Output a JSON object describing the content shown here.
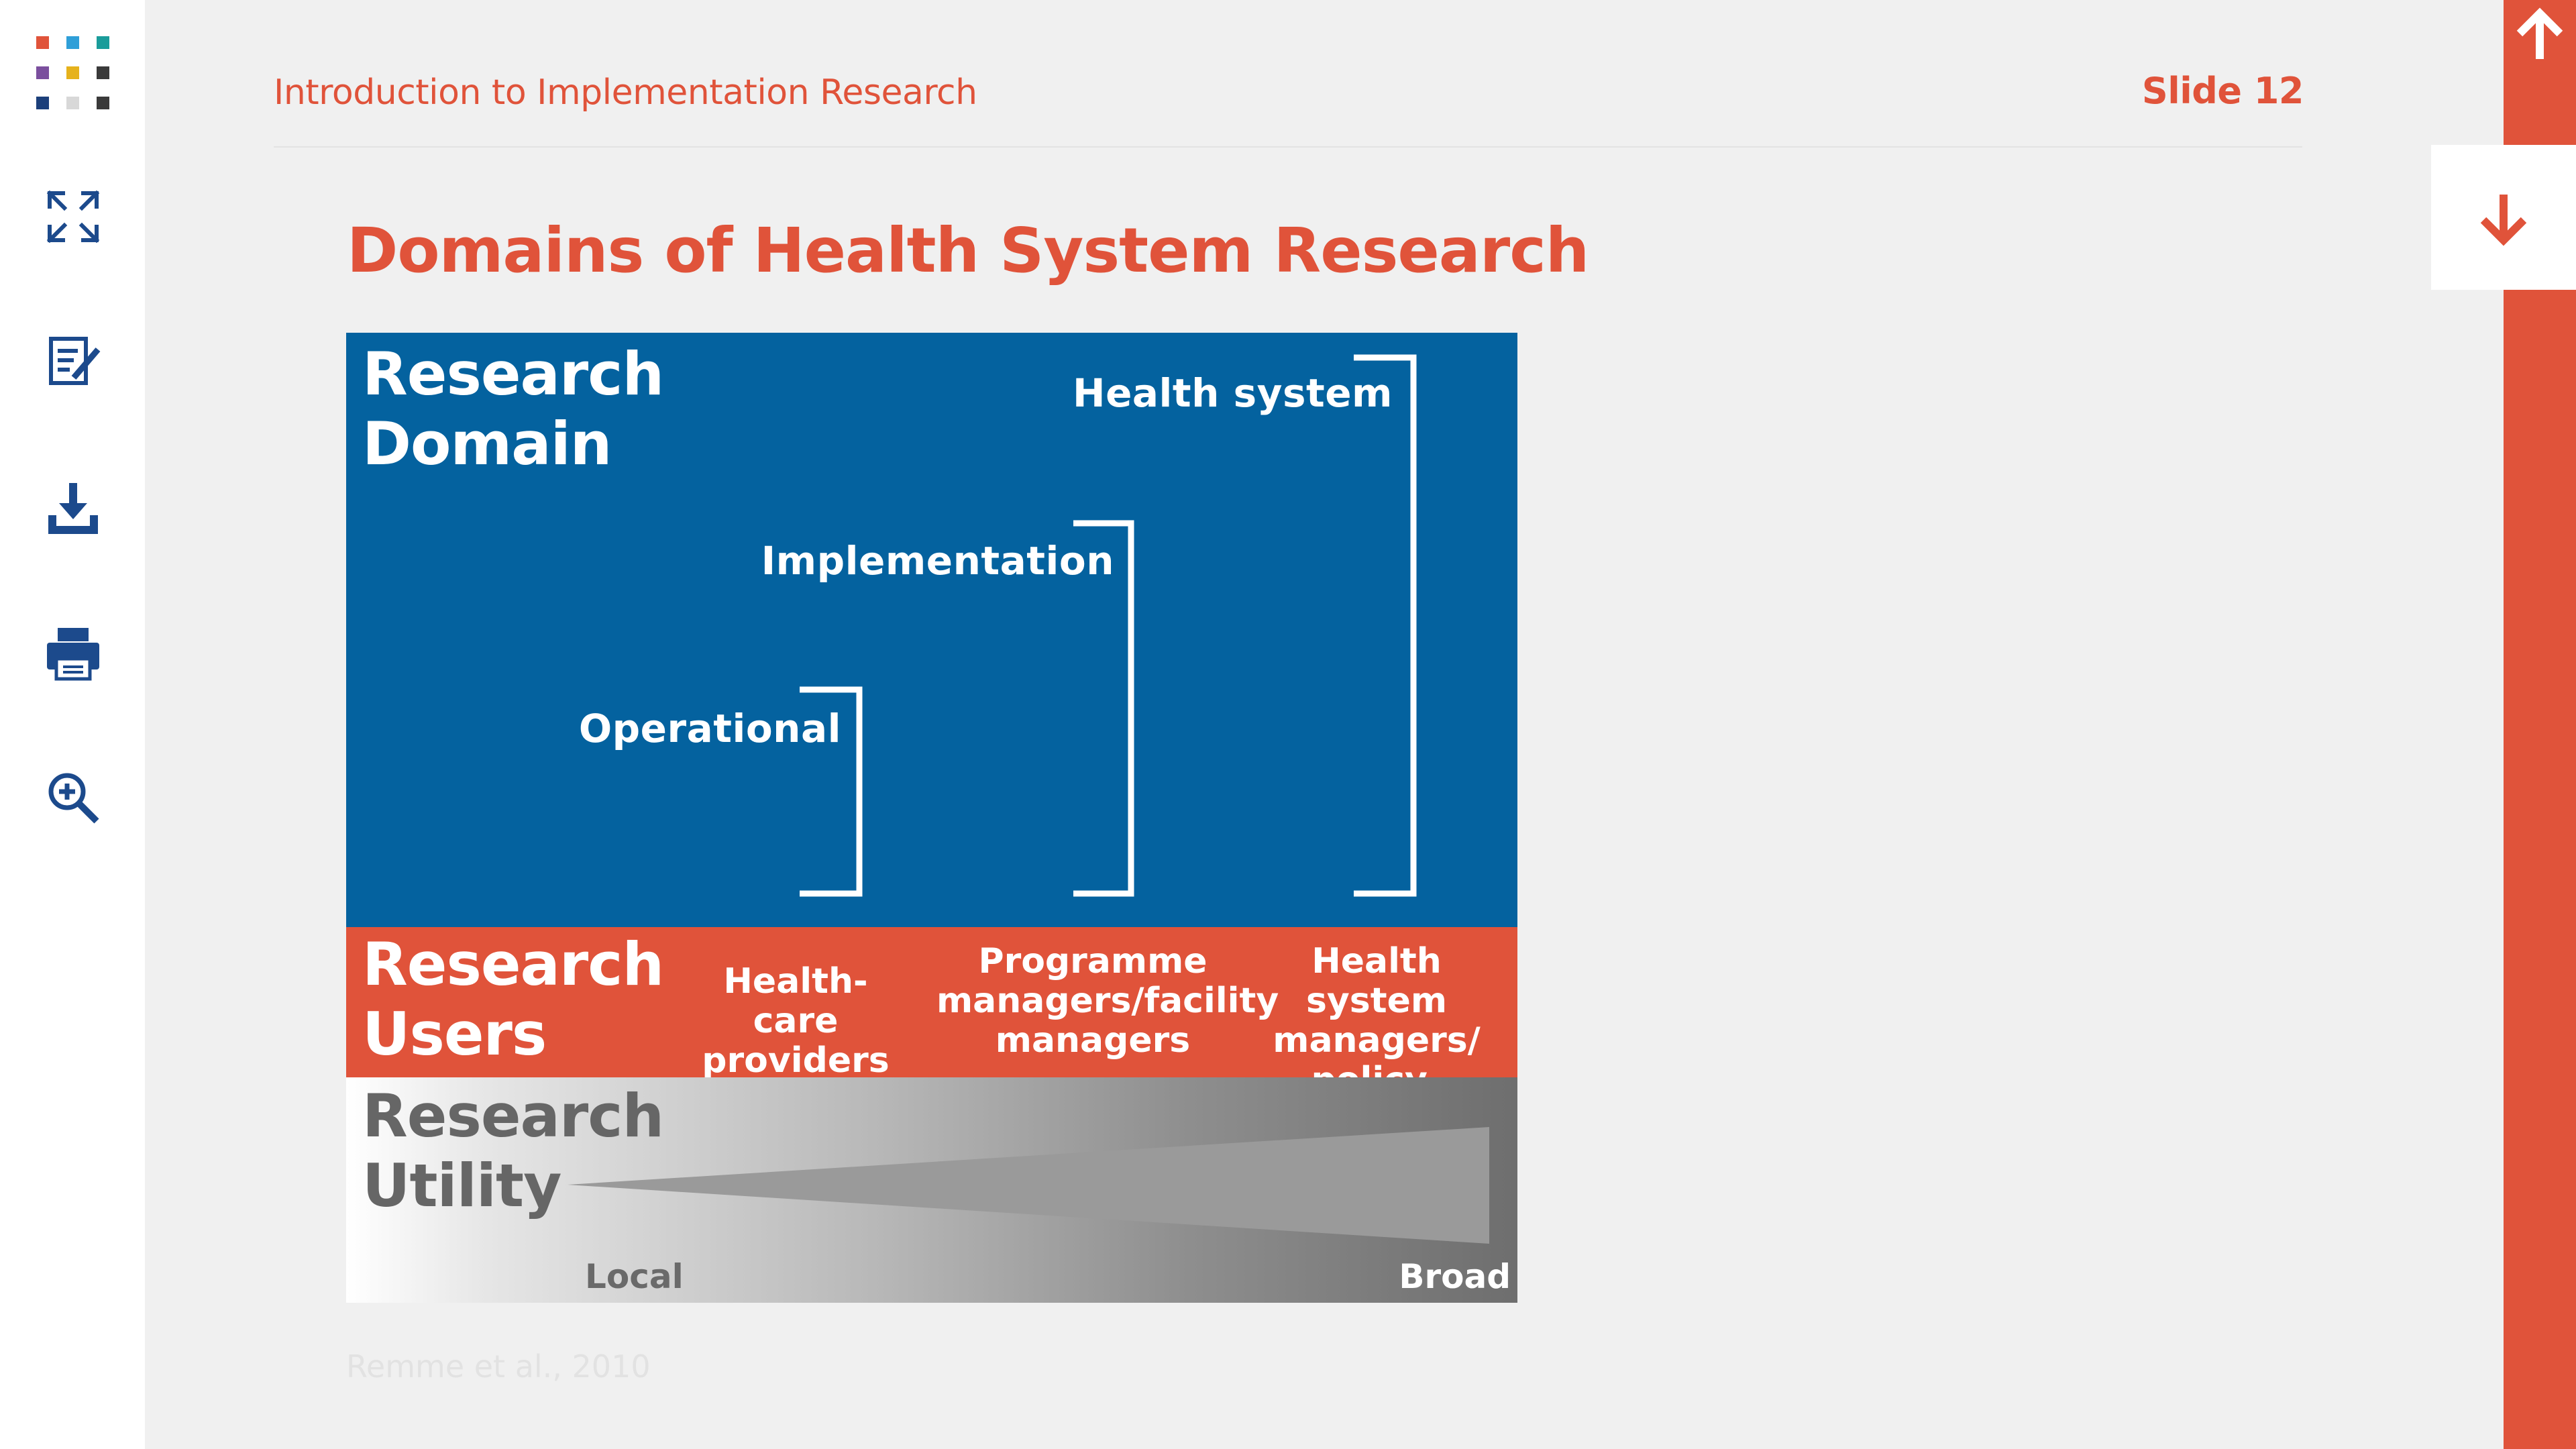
{
  "header": {
    "course_title": "Introduction to Implementation Research",
    "slide_number": "Slide 12"
  },
  "sidebar": {
    "logo": "logo-icon",
    "items": [
      {
        "name": "fullscreen-icon"
      },
      {
        "name": "notes-icon"
      },
      {
        "name": "download-icon"
      },
      {
        "name": "print-icon"
      },
      {
        "name": "zoom-in-icon"
      }
    ]
  },
  "slide": {
    "title": "Domains of Health System Research",
    "diagram": {
      "domain_label_1": "Research",
      "domain_label_2": "Domain",
      "levels": {
        "operational": "Operational",
        "implementation": "Implementation",
        "health_system": "Health system"
      },
      "users_label_1": "Research",
      "users_label_2": "Users",
      "users": {
        "providers_1": "Health-care",
        "providers_2": "providers",
        "programme_1": "Programme",
        "programme_2": "managers/facility",
        "programme_3": "managers",
        "policy_1": "Health system",
        "policy_2": "managers/",
        "policy_3": "policy-makers"
      },
      "utility_label_1": "Research",
      "utility_label_2": "Utility",
      "utility_local": "Local",
      "utility_broad": "Broad"
    },
    "citation": "Remme et al., 2010"
  },
  "colors": {
    "accent": "#e0533a",
    "domain_blue": "#04629f",
    "sidebar_icon": "#1c4a8c"
  },
  "navigation": {
    "up": "arrow-up-icon",
    "down": "arrow-down-icon"
  }
}
